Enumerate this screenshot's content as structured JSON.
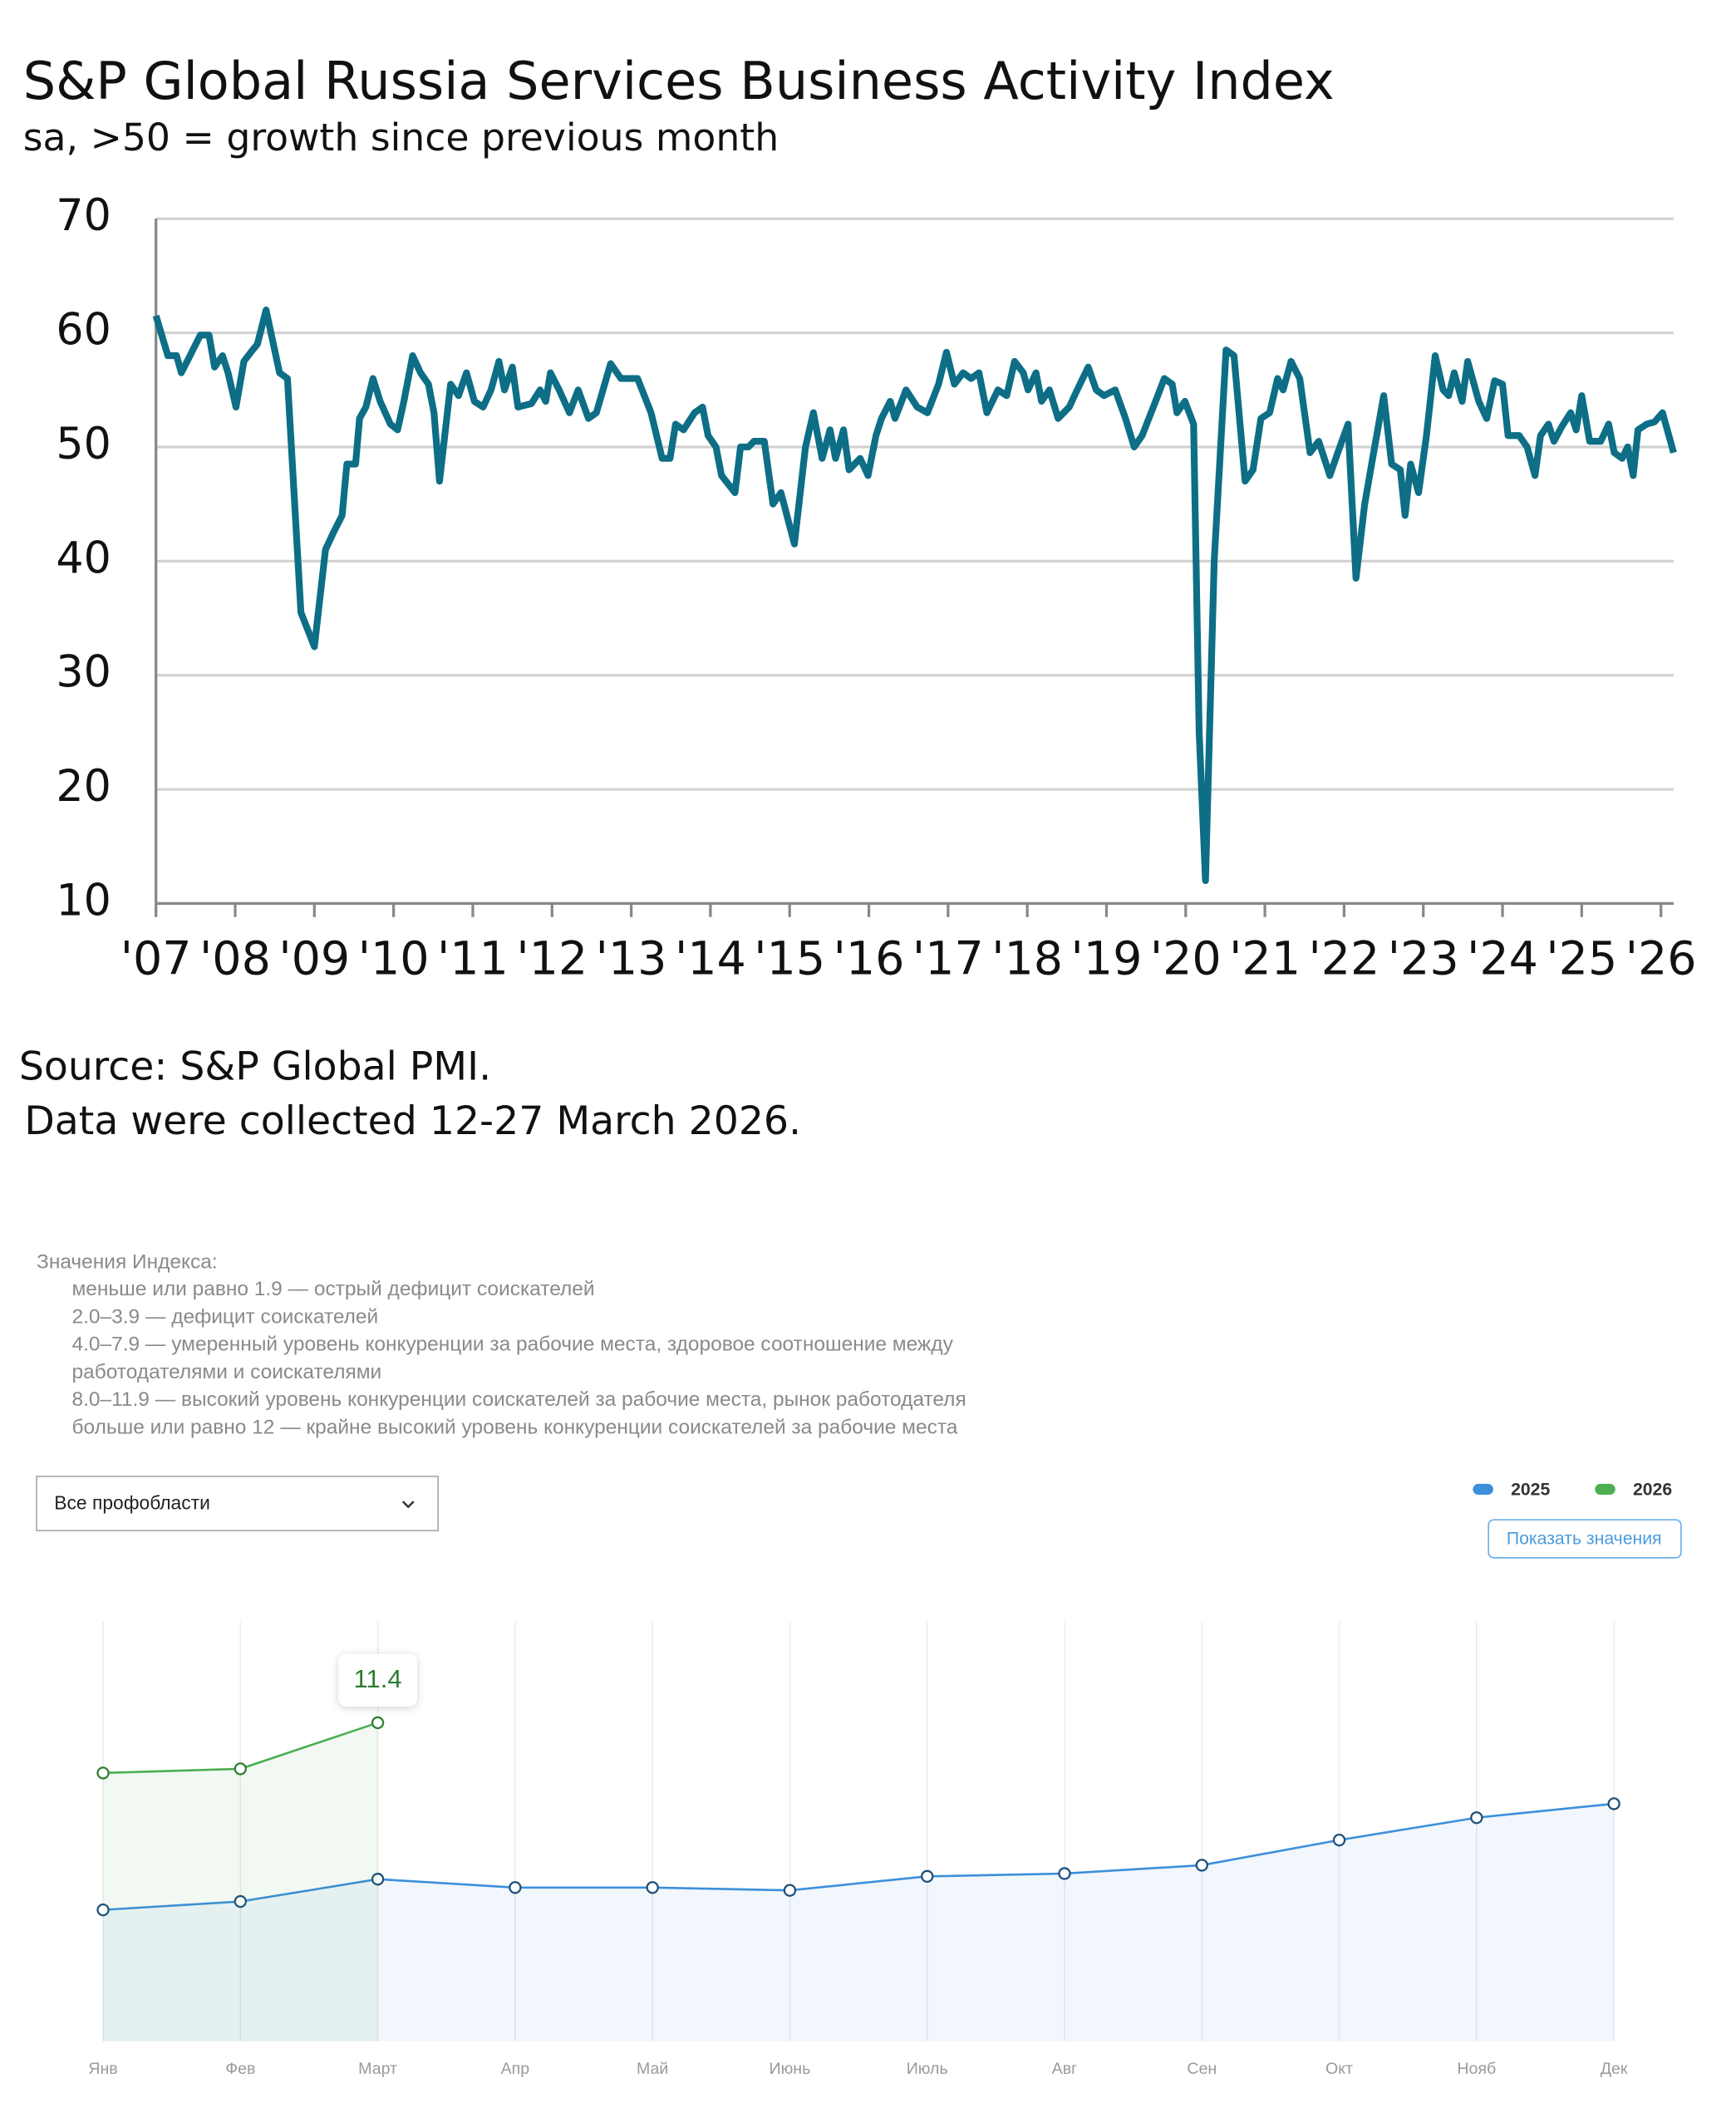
{
  "chart_data": [
    {
      "type": "line",
      "title": "S&P Global Russia Services Business Activity Index",
      "subtitle": "sa, >50 = growth since previous month",
      "source": "Source: S&P Global PMI.",
      "note": "Data were collected 12-27 March 2026.",
      "color": "#0d6e86",
      "x": [
        2007.0,
        2007.15,
        2007.26,
        2007.32,
        2007.43,
        2007.56,
        2007.67,
        2007.74,
        2007.84,
        2007.91,
        2008.01,
        2008.11,
        2008.22,
        2008.28,
        2008.39,
        2008.56,
        2008.66,
        2008.83,
        2009.0,
        2009.14,
        2009.24,
        2009.35,
        2009.41,
        2009.52,
        2009.57,
        2009.65,
        2009.74,
        2009.83,
        2009.96,
        2010.05,
        2010.13,
        2010.24,
        2010.34,
        2010.44,
        2010.51,
        2010.58,
        2010.72,
        2010.82,
        2010.92,
        2011.02,
        2011.13,
        2011.23,
        2011.33,
        2011.4,
        2011.5,
        2011.57,
        2011.74,
        2011.85,
        2011.92,
        2011.98,
        2012.09,
        2012.22,
        2012.33,
        2012.46,
        2012.56,
        2012.74,
        2012.87,
        2013.08,
        2013.25,
        2013.39,
        2013.49,
        2013.56,
        2013.66,
        2013.8,
        2013.9,
        2013.97,
        2014.07,
        2014.14,
        2014.31,
        2014.38,
        2014.48,
        2014.55,
        2014.68,
        2014.79,
        2014.89,
        2015.06,
        2015.2,
        2015.3,
        2015.41,
        2015.51,
        2015.58,
        2015.68,
        2015.75,
        2015.89,
        2015.99,
        2016.09,
        2016.16,
        2016.27,
        2016.33,
        2016.47,
        2016.61,
        2016.74,
        2016.88,
        2016.98,
        2017.08,
        2017.19,
        2017.29,
        2017.39,
        2017.49,
        2017.63,
        2017.74,
        2017.84,
        2017.95,
        2018.01,
        2018.11,
        2018.18,
        2018.28,
        2018.39,
        2018.53,
        2018.63,
        2018.77,
        2018.87,
        2018.97,
        2019.11,
        2019.24,
        2019.35,
        2019.45,
        2019.62,
        2019.73,
        2019.83,
        2019.89,
        2019.99,
        2020.1,
        2020.17,
        2020.25,
        2020.36,
        2020.51,
        2020.61,
        2020.75,
        2020.85,
        2020.95,
        2021.06,
        2021.16,
        2021.23,
        2021.33,
        2021.44,
        2021.57,
        2021.68,
        2021.82,
        2021.92,
        2022.05,
        2022.15,
        2022.26,
        2022.36,
        2022.5,
        2022.6,
        2022.71,
        2022.77,
        2022.84,
        2022.94,
        2023.04,
        2023.15,
        2023.25,
        2023.32,
        2023.39,
        2023.49,
        2023.56,
        2023.7,
        2023.8,
        2023.9,
        2024.0,
        2024.07,
        2024.21,
        2024.31,
        2024.41,
        2024.48,
        2024.58,
        2024.65,
        2024.75,
        2024.86,
        2024.93,
        2025.0,
        2025.1,
        2025.24,
        2025.34,
        2025.41,
        2025.51,
        2025.58,
        2025.65,
        2025.71,
        2025.82,
        2025.92,
        2026.02,
        2026.16
      ],
      "values": [
        61.5,
        58,
        58,
        56.5,
        58,
        59.8,
        59.8,
        57,
        58,
        56.5,
        53.5,
        57.5,
        58.5,
        59,
        62,
        56.5,
        56,
        35.5,
        32.5,
        41,
        42.5,
        44,
        48.5,
        48.5,
        52.5,
        53.5,
        56,
        54,
        52,
        51.5,
        54,
        58,
        56.5,
        55.5,
        53,
        47,
        55.5,
        54.5,
        56.5,
        54,
        53.5,
        55,
        57.5,
        55,
        57,
        53.5,
        53.8,
        55,
        54,
        56.5,
        55,
        53,
        55,
        52.5,
        53,
        57.3,
        56,
        56,
        53,
        49,
        49,
        52,
        51.5,
        53,
        53.5,
        51,
        50,
        47.5,
        46,
        50,
        50,
        50.5,
        50.5,
        45,
        46,
        41.5,
        50,
        53,
        49,
        51.5,
        49,
        51.5,
        48,
        49,
        47.5,
        51,
        52.5,
        54,
        52.5,
        55,
        53.5,
        53,
        55.5,
        58.3,
        55.5,
        56.5,
        56,
        56.5,
        53,
        55,
        54.5,
        57.5,
        56.5,
        55,
        56.5,
        54,
        55,
        52.5,
        53.5,
        55,
        57,
        55,
        54.5,
        55,
        52.5,
        50,
        51,
        54,
        56,
        55.5,
        53,
        54,
        52,
        25,
        12,
        40,
        58.5,
        58,
        47,
        48,
        52.5,
        53,
        56,
        55,
        57.5,
        56,
        49.5,
        50.5,
        47.5,
        49.5,
        52,
        38.5,
        45,
        49,
        54.5,
        48.5,
        48,
        44,
        48.5,
        46,
        51,
        58,
        55,
        54.5,
        56.5,
        54,
        57.5,
        54,
        52.5,
        55.8,
        55.5,
        51,
        51,
        50,
        47.5,
        51,
        52,
        50.5,
        51.8,
        53,
        51.5,
        54.5,
        50.5,
        50.5,
        52,
        49.5,
        49,
        50,
        47.5,
        51.5,
        52,
        52.2,
        53,
        49.5
      ],
      "xlim": [
        2007,
        2026.16
      ],
      "xticks": [
        {
          "value": 2007,
          "label": "'07"
        },
        {
          "value": 2008,
          "label": "'08"
        },
        {
          "value": 2009,
          "label": "'09"
        },
        {
          "value": 2010,
          "label": "'10"
        },
        {
          "value": 2011,
          "label": "'11"
        },
        {
          "value": 2012,
          "label": "'12"
        },
        {
          "value": 2013,
          "label": "'13"
        },
        {
          "value": 2014,
          "label": "'14"
        },
        {
          "value": 2015,
          "label": "'15"
        },
        {
          "value": 2016,
          "label": "'16"
        },
        {
          "value": 2017,
          "label": "'17"
        },
        {
          "value": 2018,
          "label": "'18"
        },
        {
          "value": 2019,
          "label": "'19"
        },
        {
          "value": 2020,
          "label": "'20"
        },
        {
          "value": 2021,
          "label": "'21"
        },
        {
          "value": 2022,
          "label": "'22"
        },
        {
          "value": 2023,
          "label": "'23"
        },
        {
          "value": 2024,
          "label": "'24"
        },
        {
          "value": 2025,
          "label": "'25"
        },
        {
          "value": 2026,
          "label": "'26"
        }
      ],
      "ylim": [
        10,
        70
      ],
      "yticks": [
        10,
        20,
        30,
        40,
        50,
        60,
        70
      ],
      "grid": true
    },
    {
      "type": "line",
      "categories": [
        "Янв",
        "Фев",
        "Март",
        "Апр",
        "Май",
        "Июнь",
        "Июль",
        "Авг",
        "Сен",
        "Окт",
        "Нояб",
        "Дек"
      ],
      "series": [
        {
          "name": "2025",
          "color": "#3d8fdb",
          "values": [
            4.7,
            5.0,
            5.8,
            5.5,
            5.5,
            5.4,
            5.9,
            6.0,
            6.3,
            7.2,
            8.0,
            8.5
          ]
        },
        {
          "name": "2026",
          "color": "#4caf50",
          "values": [
            9.6,
            9.75,
            11.4,
            null,
            null,
            null,
            null,
            null,
            null,
            null,
            null,
            null
          ]
        }
      ],
      "ylim": [
        0,
        15
      ],
      "grid": true,
      "area": true,
      "markers": true,
      "legend": "top-right"
    }
  ],
  "index_note": {
    "title": "Значения Индекса:",
    "lines": [
      "меньше или равно 1.9 — острый дефицит соискателей",
      "2.0–3.9 — дефицит соискателей",
      "4.0–7.9 — умеренный уровень конкуренции за рабочие места, здоровое соотношение между",
      "работодателями и соискателями",
      "8.0–11.9 — высокий уровень конкуренции соискателей за рабочие места, рынок работодателя",
      "больше или равно 12 — крайне высокий уровень конкуренции соискателей за рабочие места"
    ]
  },
  "filter": "Все профобласти",
  "button": "Показать значения"
}
